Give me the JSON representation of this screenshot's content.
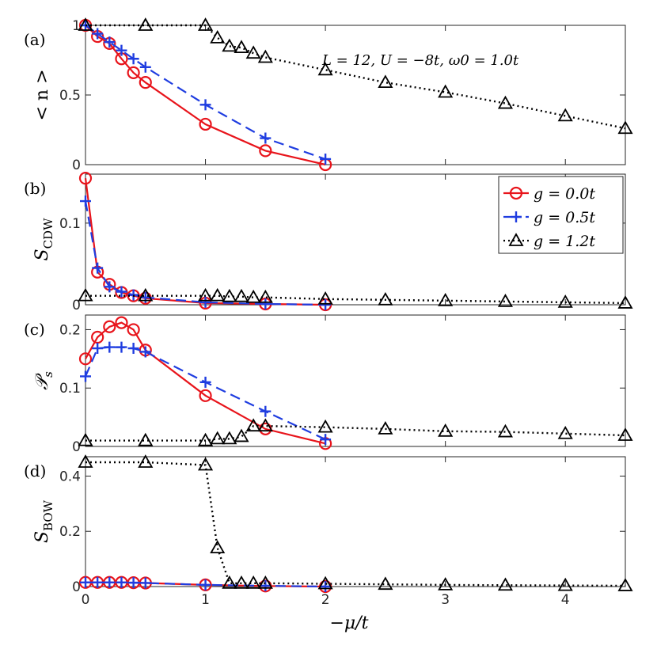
{
  "chart_data": [
    {
      "type": "line",
      "panel_label": "(a)",
      "ylabel": "< n >",
      "xlim": [
        0,
        4.5
      ],
      "ylim": [
        0,
        1
      ],
      "yticks": [
        0,
        0.5,
        1
      ],
      "ytick_labels": [
        "0",
        "0.5",
        "1"
      ],
      "annotation": "L = 12, U = −8t, ω0 = 1.0t",
      "series": [
        {
          "name": "g = 0.0t",
          "x": [
            0,
            0.1,
            0.2,
            0.3,
            0.4,
            0.5,
            1,
            1.5,
            2
          ],
          "y": [
            1.0,
            0.92,
            0.87,
            0.76,
            0.66,
            0.59,
            0.29,
            0.1,
            0.0
          ]
        },
        {
          "name": "g = 0.5t",
          "x": [
            0,
            0.1,
            0.2,
            0.3,
            0.4,
            0.5,
            1,
            1.5,
            2
          ],
          "y": [
            1.0,
            0.94,
            0.88,
            0.82,
            0.76,
            0.7,
            0.43,
            0.19,
            0.04
          ]
        },
        {
          "name": "g = 1.2t",
          "x": [
            0,
            0.5,
            1,
            1.1,
            1.2,
            1.3,
            1.4,
            1.5,
            2,
            2.5,
            3,
            3.5,
            4,
            4.5
          ],
          "y": [
            1.0,
            1.0,
            1.0,
            0.91,
            0.85,
            0.84,
            0.8,
            0.77,
            0.68,
            0.59,
            0.52,
            0.44,
            0.35,
            0.26
          ]
        }
      ]
    },
    {
      "type": "line",
      "panel_label": "(b)",
      "ylabel": "S_CDW",
      "xlim": [
        0,
        4.5
      ],
      "ylim": [
        0,
        0.16
      ],
      "yticks": [
        0,
        0.1
      ],
      "ytick_labels": [
        "0",
        "0.1"
      ],
      "legend": {
        "position": "top-right",
        "entries": [
          "g = 0.0t",
          "g = 0.5t",
          "g = 1.2t"
        ]
      },
      "series": [
        {
          "name": "g = 0.0t",
          "x": [
            0,
            0.1,
            0.2,
            0.3,
            0.4,
            0.5,
            1,
            1.5,
            2
          ],
          "y": [
            0.155,
            0.04,
            0.025,
            0.015,
            0.011,
            0.008,
            0.002,
            0.001,
            0.0
          ]
        },
        {
          "name": "g = 0.5t",
          "x": [
            0,
            0.1,
            0.2,
            0.3,
            0.4,
            0.5,
            1,
            1.5,
            2
          ],
          "y": [
            0.127,
            0.045,
            0.022,
            0.016,
            0.012,
            0.009,
            0.003,
            0.001,
            0.0
          ]
        },
        {
          "name": "g = 1.2t",
          "x": [
            0,
            0.5,
            1,
            1.1,
            1.2,
            1.3,
            1.4,
            1.5,
            2,
            2.5,
            3,
            3.5,
            4,
            4.5
          ],
          "y": [
            0.011,
            0.011,
            0.011,
            0.011,
            0.01,
            0.01,
            0.009,
            0.009,
            0.007,
            0.006,
            0.005,
            0.004,
            0.003,
            0.002
          ]
        }
      ]
    },
    {
      "type": "line",
      "panel_label": "(c)",
      "ylabel": "P_s",
      "xlim": [
        0,
        4.5
      ],
      "ylim": [
        0,
        0.225
      ],
      "yticks": [
        0,
        0.1,
        0.2
      ],
      "ytick_labels": [
        "0",
        "0.1",
        "0.2"
      ],
      "series": [
        {
          "name": "g = 0.0t",
          "x": [
            0,
            0.1,
            0.2,
            0.3,
            0.4,
            0.5,
            1,
            1.5,
            2
          ],
          "y": [
            0.15,
            0.187,
            0.205,
            0.212,
            0.2,
            0.165,
            0.087,
            0.03,
            0.005
          ]
        },
        {
          "name": "g = 0.5t",
          "x": [
            0,
            0.1,
            0.2,
            0.3,
            0.4,
            0.5,
            1,
            1.5,
            2
          ],
          "y": [
            0.12,
            0.168,
            0.17,
            0.17,
            0.168,
            0.162,
            0.11,
            0.06,
            0.012
          ]
        },
        {
          "name": "g = 1.2t",
          "x": [
            0,
            0.5,
            1,
            1.1,
            1.2,
            1.3,
            1.4,
            1.5,
            2,
            2.5,
            3,
            3.5,
            4,
            4.5
          ],
          "y": [
            0.01,
            0.01,
            0.01,
            0.013,
            0.013,
            0.017,
            0.035,
            0.035,
            0.033,
            0.03,
            0.026,
            0.025,
            0.022,
            0.019
          ]
        }
      ]
    },
    {
      "type": "line",
      "panel_label": "(d)",
      "ylabel": "S_BOW",
      "xlabel": "−μ/t",
      "xlim": [
        0,
        4.5
      ],
      "ylim": [
        0,
        0.47
      ],
      "yticks": [
        0,
        0.2,
        0.4
      ],
      "ytick_labels": [
        "0",
        "0.2",
        "0.4"
      ],
      "xticks": [
        0,
        1,
        2,
        3,
        4
      ],
      "xtick_labels": [
        "0",
        "1",
        "2",
        "3",
        "4"
      ],
      "series": [
        {
          "name": "g = 0.0t",
          "x": [
            0,
            0.1,
            0.2,
            0.3,
            0.4,
            0.5,
            1,
            1.5,
            2
          ],
          "y": [
            0.015,
            0.015,
            0.015,
            0.015,
            0.014,
            0.013,
            0.006,
            0.002,
            0.0
          ]
        },
        {
          "name": "g = 0.5t",
          "x": [
            0,
            0.1,
            0.2,
            0.3,
            0.4,
            0.5,
            1,
            1.5,
            2
          ],
          "y": [
            0.015,
            0.015,
            0.015,
            0.015,
            0.014,
            0.013,
            0.006,
            0.003,
            0.0
          ]
        },
        {
          "name": "g = 1.2t",
          "x": [
            0,
            0.5,
            1,
            1.1,
            1.2,
            1.3,
            1.4,
            1.5,
            2,
            2.5,
            3,
            3.5,
            4,
            4.5
          ],
          "y": [
            0.45,
            0.45,
            0.44,
            0.14,
            0.012,
            0.012,
            0.012,
            0.012,
            0.01,
            0.008,
            0.006,
            0.005,
            0.004,
            0.003
          ]
        }
      ]
    }
  ],
  "styles": {
    "g = 0.0t": {
      "color": "#e8141b",
      "dash": "",
      "marker": "circle"
    },
    "g = 0.5t": {
      "color": "#1f3de0",
      "dash": "13 7",
      "marker": "plus"
    },
    "g = 1.2t": {
      "color": "#000000",
      "dash": "2 4",
      "marker": "triangle"
    }
  }
}
